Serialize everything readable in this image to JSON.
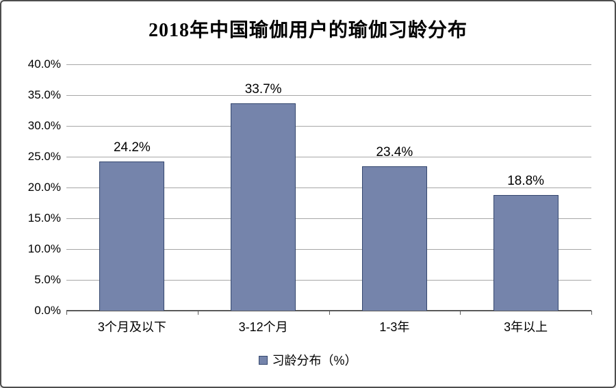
{
  "chart_data": {
    "type": "bar",
    "title": "2018年中国瑜伽用户的瑜伽习龄分布",
    "categories": [
      "3个月及以下",
      "3-12个月",
      "1-3年",
      "3年以上"
    ],
    "values": [
      24.2,
      33.7,
      23.4,
      18.8
    ],
    "value_labels": [
      "24.2%",
      "33.7%",
      "23.4%",
      "18.8%"
    ],
    "series_name": "习龄分布（%）",
    "xlabel": "",
    "ylabel": "",
    "ylim": [
      0,
      40
    ],
    "ytick_step": 5,
    "ytick_labels": [
      "0.0%",
      "5.0%",
      "10.0%",
      "15.0%",
      "20.0%",
      "25.0%",
      "30.0%",
      "35.0%",
      "40.0%"
    ],
    "grid": true,
    "legend_position": "bottom",
    "colors": {
      "bar_fill": "#7584ab",
      "bar_border": "#34476e",
      "gridline": "#a6a6a6",
      "axis_line": "#595959",
      "text": "#000000",
      "frame_border": "#4d4d4d",
      "background": "#ffffff"
    }
  }
}
